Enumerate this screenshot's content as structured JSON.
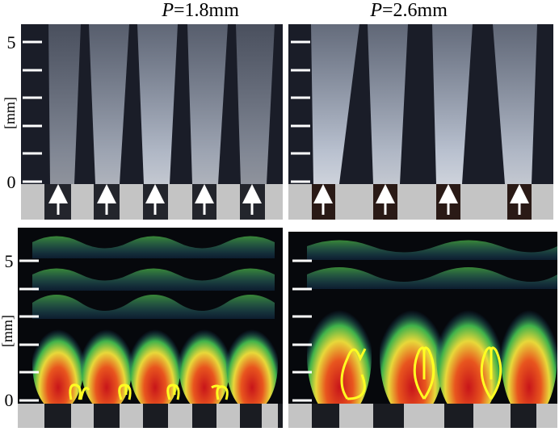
{
  "columns": [
    {
      "symbol": "P",
      "rest": "=1.8mm"
    },
    {
      "symbol": "P",
      "rest": "=2.6mm"
    }
  ],
  "rows": [
    {
      "axis_label": "[mm]",
      "tick_top": "5",
      "tick_bottom": "0"
    },
    {
      "axis_label": "[mm]",
      "tick_top": "5",
      "tick_bottom": "0"
    }
  ]
}
